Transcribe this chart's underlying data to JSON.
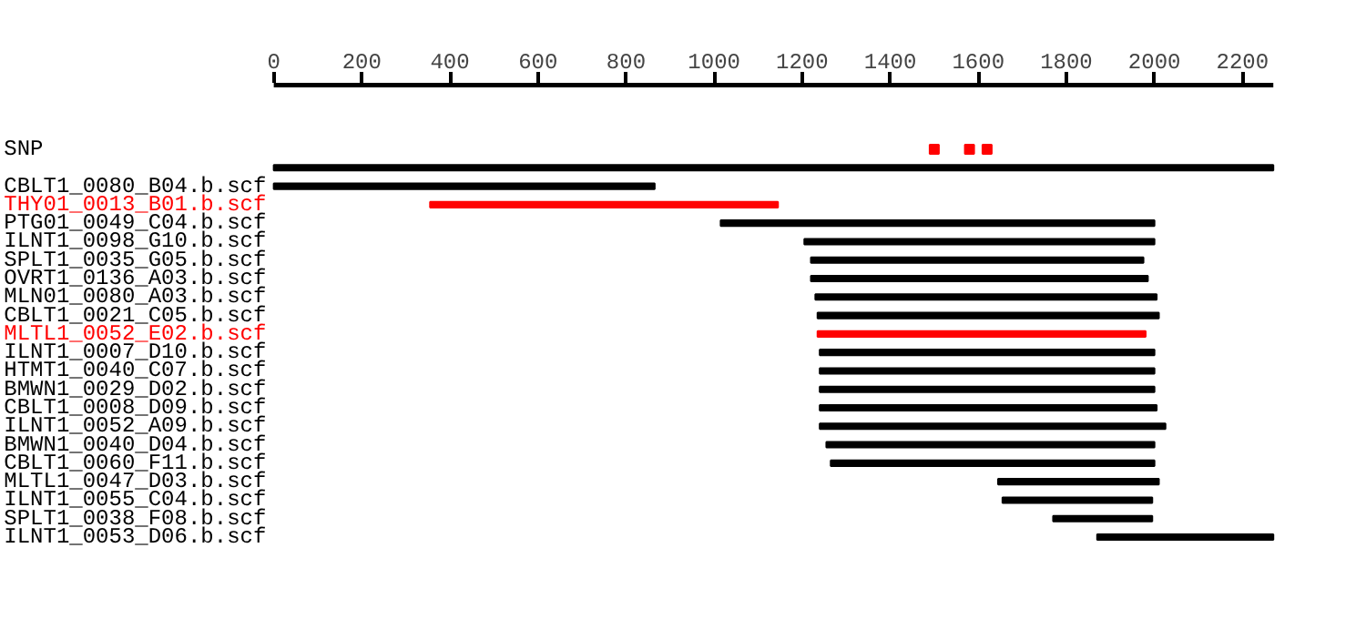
{
  "chart_data": {
    "type": "bar",
    "orientation": "horizontal",
    "categories": [
      "SNP",
      null,
      "CBLT1_0080_B04.b.scf",
      "THY01_0013_B01.b.scf",
      "PTG01_0049_C04.b.scf",
      "ILNT1_0098_G10.b.scf",
      "SPLT1_0035_G05.b.scf",
      "OVRT1_0136_A03.b.scf",
      "MLN01_0080_A03.b.scf",
      "CBLT1_0021_C05.b.scf",
      "MLTL1_0052_E02.b.scf",
      "ILNT1_0007_D10.b.scf",
      "HTMT1_0040_C07.b.scf",
      "BMWN1_0029_D02.b.scf",
      "CBLT1_0008_D09.b.scf",
      "ILNT1_0052_A09.b.scf",
      "BMWN1_0040_D04.b.scf",
      "CBLT1_0060_F11.b.scf",
      "MLTL1_0047_D03.b.scf",
      "ILNT1_0055_C04.b.scf",
      "SPLT1_0038_F08.b.scf",
      "ILNT1_0053_D06.b.scf"
    ],
    "series": [
      {
        "base": [
          null,
          0,
          0,
          355,
          1015,
          1205,
          1220,
          1220,
          1230,
          1235,
          1235,
          1240,
          1240,
          1240,
          1240,
          1240,
          1255,
          1265,
          1645,
          1655,
          1770,
          1870
        ],
        "values": [
          null,
          2270,
          865,
          790,
          985,
          795,
          755,
          765,
          775,
          775,
          745,
          760,
          760,
          760,
          765,
          785,
          745,
          735,
          365,
          340,
          225,
          400
        ],
        "colors": [
          "#000000",
          "#000000",
          "#000000",
          "#ff0000",
          "#000000",
          "#000000",
          "#000000",
          "#000000",
          "#000000",
          "#000000",
          "#ff0000",
          "#000000",
          "#000000",
          "#000000",
          "#000000",
          "#000000",
          "#000000",
          "#000000",
          "#000000",
          "#000000",
          "#000000",
          "#000000"
        ]
      },
      {
        "type": "scatter",
        "values": [
          1500,
          null,
          null,
          null,
          null,
          null,
          null,
          null,
          null,
          null,
          null,
          null,
          null,
          null,
          null,
          null,
          null,
          null,
          null,
          null,
          null,
          null
        ],
        "color": "#ff0000"
      },
      {
        "type": "scatter",
        "values": [
          1580,
          null,
          null,
          null,
          null,
          null,
          null,
          null,
          null,
          null,
          null,
          null,
          null,
          null,
          null,
          null,
          null,
          null,
          null,
          null,
          null,
          null
        ],
        "color": "#ff0000"
      },
      {
        "type": "scatter",
        "values": [
          1620,
          null,
          null,
          null,
          null,
          null,
          null,
          null,
          null,
          null,
          null,
          null,
          null,
          null,
          null,
          null,
          null,
          null,
          null,
          null,
          null,
          null
        ],
        "color": "#ff0000"
      }
    ],
    "marker": "square",
    "xlim": [
      0,
      2270
    ],
    "xticks": [
      0,
      200,
      400,
      600,
      800,
      1000,
      1200,
      1400,
      1600,
      1800,
      2000,
      2200
    ],
    "grid": false
  }
}
